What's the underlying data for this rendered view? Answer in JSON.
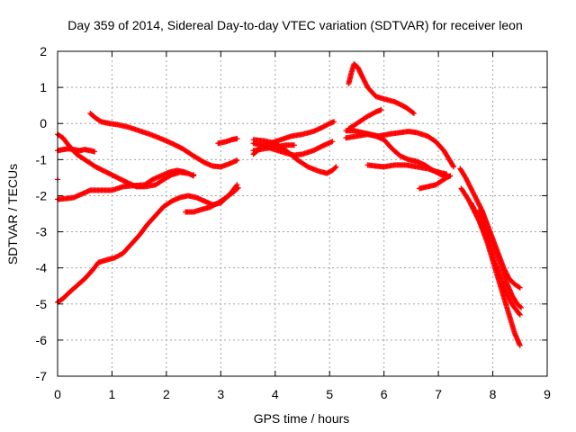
{
  "chart_data": {
    "type": "scatter",
    "title": "Day 359 of 2014, Sidereal Day-to-day VTEC variation (SDTVAR) for receiver leon",
    "xlabel": "GPS time / hours",
    "ylabel": "SDTVAR / TECUs",
    "xlim": [
      0,
      9
    ],
    "ylim": [
      -7,
      2
    ],
    "xticks": [
      0,
      1,
      2,
      3,
      4,
      5,
      6,
      7,
      8,
      9
    ],
    "yticks": [
      -7,
      -6,
      -5,
      -4,
      -3,
      -2,
      -1,
      0,
      1,
      2
    ],
    "grid": true,
    "legend": "none",
    "marker": "plus",
    "color": "#ff0000",
    "series": [
      {
        "points": [
          [
            0.0,
            -0.75
          ],
          [
            0.1,
            -0.72
          ],
          [
            0.2,
            -0.7
          ],
          [
            0.3,
            -0.72
          ],
          [
            0.4,
            -0.75
          ],
          [
            0.5,
            -0.72
          ],
          [
            0.6,
            -0.75
          ],
          [
            0.68,
            -0.78
          ]
        ]
      },
      {
        "points": [
          [
            0.0,
            -0.3
          ],
          [
            0.1,
            -0.4
          ],
          [
            0.2,
            -0.6
          ],
          [
            0.35,
            -0.85
          ],
          [
            0.5,
            -1.0
          ],
          [
            0.7,
            -1.2
          ],
          [
            0.9,
            -1.35
          ],
          [
            1.1,
            -1.5
          ],
          [
            1.3,
            -1.65
          ],
          [
            1.45,
            -1.75
          ],
          [
            1.6,
            -1.75
          ],
          [
            1.8,
            -1.7
          ],
          [
            1.95,
            -1.55
          ],
          [
            2.1,
            -1.42
          ],
          [
            2.25,
            -1.35
          ],
          [
            2.4,
            -1.38
          ],
          [
            2.5,
            -1.45
          ]
        ]
      },
      {
        "points": [
          [
            0.0,
            -2.1
          ],
          [
            0.15,
            -2.08
          ],
          [
            0.3,
            -2.05
          ],
          [
            0.45,
            -1.95
          ],
          [
            0.6,
            -1.85
          ],
          [
            0.8,
            -1.85
          ],
          [
            1.0,
            -1.85
          ],
          [
            1.2,
            -1.75
          ],
          [
            1.4,
            -1.72
          ],
          [
            1.6,
            -1.7
          ],
          [
            1.75,
            -1.55
          ],
          [
            1.9,
            -1.45
          ],
          [
            2.05,
            -1.35
          ],
          [
            2.2,
            -1.3
          ],
          [
            2.35,
            -1.35
          ]
        ]
      },
      {
        "points": [
          [
            0.6,
            0.28
          ],
          [
            0.7,
            0.15
          ],
          [
            0.8,
            0.05
          ],
          [
            0.95,
            0.0
          ],
          [
            1.1,
            -0.03
          ],
          [
            1.3,
            -0.1
          ],
          [
            1.5,
            -0.2
          ],
          [
            1.7,
            -0.3
          ],
          [
            1.9,
            -0.42
          ],
          [
            2.1,
            -0.55
          ],
          [
            2.3,
            -0.7
          ],
          [
            2.5,
            -0.9
          ],
          [
            2.7,
            -1.08
          ],
          [
            2.85,
            -1.18
          ],
          [
            3.0,
            -1.2
          ],
          [
            3.15,
            -1.12
          ],
          [
            3.3,
            -1.02
          ]
        ]
      },
      {
        "points": [
          [
            0.0,
            -4.95
          ],
          [
            0.1,
            -4.85
          ],
          [
            0.2,
            -4.7
          ],
          [
            0.35,
            -4.5
          ],
          [
            0.5,
            -4.3
          ],
          [
            0.65,
            -4.05
          ],
          [
            0.75,
            -3.85
          ],
          [
            0.9,
            -3.78
          ],
          [
            1.05,
            -3.72
          ],
          [
            1.2,
            -3.6
          ],
          [
            1.35,
            -3.35
          ],
          [
            1.5,
            -3.1
          ],
          [
            1.65,
            -2.8
          ],
          [
            1.8,
            -2.55
          ],
          [
            1.95,
            -2.3
          ],
          [
            2.1,
            -2.15
          ],
          [
            2.25,
            -2.05
          ],
          [
            2.4,
            -2.0
          ],
          [
            2.55,
            -2.05
          ],
          [
            2.7,
            -2.15
          ],
          [
            2.85,
            -2.25
          ],
          [
            3.0,
            -2.2
          ],
          [
            3.1,
            -2.05
          ],
          [
            3.2,
            -1.9
          ],
          [
            3.3,
            -1.7
          ]
        ]
      },
      {
        "points": [
          [
            2.35,
            -2.45
          ],
          [
            2.5,
            -2.45
          ],
          [
            2.65,
            -2.38
          ],
          [
            2.8,
            -2.32
          ],
          [
            2.95,
            -2.2
          ],
          [
            3.1,
            -2.05
          ],
          [
            3.25,
            -1.88
          ],
          [
            3.32,
            -1.78
          ]
        ]
      },
      {
        "points": [
          [
            2.95,
            -0.55
          ],
          [
            3.1,
            -0.5
          ],
          [
            3.2,
            -0.45
          ],
          [
            3.3,
            -0.42
          ]
        ]
      },
      {
        "points": [
          [
            3.6,
            -0.85
          ],
          [
            3.75,
            -0.65
          ],
          [
            3.9,
            -0.55
          ],
          [
            4.1,
            -0.45
          ],
          [
            4.3,
            -0.35
          ],
          [
            4.5,
            -0.3
          ],
          [
            4.7,
            -0.22
          ],
          [
            4.85,
            -0.12
          ],
          [
            5.0,
            0.0
          ],
          [
            5.08,
            0.05
          ]
        ]
      },
      {
        "points": [
          [
            3.6,
            -0.55
          ],
          [
            3.75,
            -0.6
          ],
          [
            3.9,
            -0.68
          ],
          [
            4.05,
            -0.75
          ],
          [
            4.2,
            -0.82
          ],
          [
            4.35,
            -0.88
          ],
          [
            4.5,
            -0.85
          ],
          [
            4.7,
            -0.75
          ],
          [
            4.9,
            -0.6
          ],
          [
            5.05,
            -0.5
          ]
        ]
      },
      {
        "points": [
          [
            3.6,
            -0.45
          ],
          [
            3.8,
            -0.48
          ],
          [
            4.0,
            -0.55
          ],
          [
            4.2,
            -0.75
          ],
          [
            4.4,
            -1.0
          ],
          [
            4.6,
            -1.2
          ],
          [
            4.8,
            -1.32
          ],
          [
            4.95,
            -1.38
          ],
          [
            5.05,
            -1.3
          ],
          [
            5.12,
            -1.2
          ]
        ]
      },
      {
        "points": [
          [
            3.6,
            -0.75
          ],
          [
            3.8,
            -0.7
          ],
          [
            4.0,
            -0.65
          ],
          [
            4.2,
            -0.6
          ],
          [
            4.35,
            -0.6
          ]
        ]
      },
      {
        "points": [
          [
            5.35,
            1.1
          ],
          [
            5.4,
            1.4
          ],
          [
            5.45,
            1.65
          ],
          [
            5.52,
            1.55
          ],
          [
            5.6,
            1.3
          ],
          [
            5.7,
            1.0
          ],
          [
            5.85,
            0.75
          ],
          [
            6.0,
            0.68
          ],
          [
            6.2,
            0.6
          ],
          [
            6.4,
            0.45
          ],
          [
            6.55,
            0.28
          ]
        ]
      },
      {
        "points": [
          [
            5.35,
            -0.15
          ],
          [
            5.5,
            0.0
          ],
          [
            5.7,
            0.2
          ],
          [
            5.85,
            0.32
          ],
          [
            5.95,
            0.38
          ]
        ]
      },
      {
        "points": [
          [
            5.3,
            -0.2
          ],
          [
            5.45,
            -0.2
          ],
          [
            5.6,
            -0.25
          ],
          [
            5.75,
            -0.3
          ],
          [
            5.9,
            -0.35
          ],
          [
            6.0,
            -0.32
          ],
          [
            6.15,
            -0.28
          ],
          [
            6.3,
            -0.25
          ],
          [
            6.45,
            -0.22
          ],
          [
            6.6,
            -0.25
          ],
          [
            6.8,
            -0.35
          ],
          [
            6.95,
            -0.5
          ],
          [
            7.1,
            -0.75
          ],
          [
            7.2,
            -1.0
          ],
          [
            7.28,
            -1.2
          ]
        ]
      },
      {
        "points": [
          [
            5.3,
            -0.4
          ],
          [
            5.5,
            -0.35
          ],
          [
            5.7,
            -0.3
          ],
          [
            5.85,
            -0.35
          ],
          [
            6.0,
            -0.45
          ],
          [
            6.15,
            -0.7
          ],
          [
            6.3,
            -0.9
          ],
          [
            6.45,
            -1.0
          ],
          [
            6.6,
            -1.05
          ],
          [
            6.75,
            -1.15
          ],
          [
            6.9,
            -1.3
          ],
          [
            7.05,
            -1.42
          ],
          [
            7.15,
            -1.45
          ]
        ]
      },
      {
        "points": [
          [
            5.7,
            -1.15
          ],
          [
            5.85,
            -1.18
          ],
          [
            6.0,
            -1.2
          ],
          [
            6.2,
            -1.15
          ],
          [
            6.4,
            -1.15
          ],
          [
            6.6,
            -1.2
          ],
          [
            6.8,
            -1.25
          ],
          [
            7.0,
            -1.35
          ],
          [
            7.15,
            -1.4
          ]
        ]
      },
      {
        "points": [
          [
            6.65,
            -1.8
          ],
          [
            6.8,
            -1.75
          ],
          [
            6.95,
            -1.7
          ],
          [
            7.05,
            -1.6
          ],
          [
            7.15,
            -1.5
          ],
          [
            7.22,
            -1.45
          ]
        ]
      },
      {
        "points": [
          [
            7.4,
            -1.25
          ],
          [
            7.5,
            -1.5
          ],
          [
            7.6,
            -1.8
          ],
          [
            7.7,
            -2.1
          ],
          [
            7.8,
            -2.4
          ],
          [
            7.9,
            -2.8
          ],
          [
            8.0,
            -3.2
          ],
          [
            8.1,
            -3.6
          ],
          [
            8.2,
            -4.0
          ],
          [
            8.3,
            -4.3
          ],
          [
            8.4,
            -4.45
          ],
          [
            8.5,
            -4.55
          ]
        ]
      },
      {
        "points": [
          [
            7.42,
            -1.8
          ],
          [
            7.55,
            -2.1
          ],
          [
            7.65,
            -2.4
          ],
          [
            7.75,
            -2.7
          ],
          [
            7.85,
            -3.0
          ],
          [
            7.95,
            -3.4
          ],
          [
            8.05,
            -3.9
          ],
          [
            8.15,
            -4.3
          ],
          [
            8.25,
            -4.7
          ],
          [
            8.35,
            -5.0
          ],
          [
            8.45,
            -5.2
          ],
          [
            8.5,
            -5.3
          ]
        ]
      },
      {
        "points": [
          [
            7.6,
            -2.2
          ],
          [
            7.7,
            -2.5
          ],
          [
            7.8,
            -2.9
          ],
          [
            7.9,
            -3.3
          ],
          [
            8.0,
            -3.8
          ],
          [
            8.1,
            -4.3
          ],
          [
            8.2,
            -4.8
          ],
          [
            8.3,
            -5.3
          ],
          [
            8.4,
            -5.8
          ],
          [
            8.5,
            -6.15
          ]
        ]
      },
      {
        "points": [
          [
            7.75,
            -2.4
          ],
          [
            7.85,
            -2.9
          ],
          [
            7.95,
            -3.1
          ],
          [
            8.05,
            -3.5
          ],
          [
            8.15,
            -3.9
          ],
          [
            8.25,
            -4.4
          ],
          [
            8.35,
            -4.75
          ],
          [
            8.45,
            -5.0
          ],
          [
            8.52,
            -5.1
          ]
        ]
      }
    ],
    "extra_points": [
      [
        0.0,
        -1.55
      ],
      [
        2.5,
        -1.42
      ]
    ]
  }
}
